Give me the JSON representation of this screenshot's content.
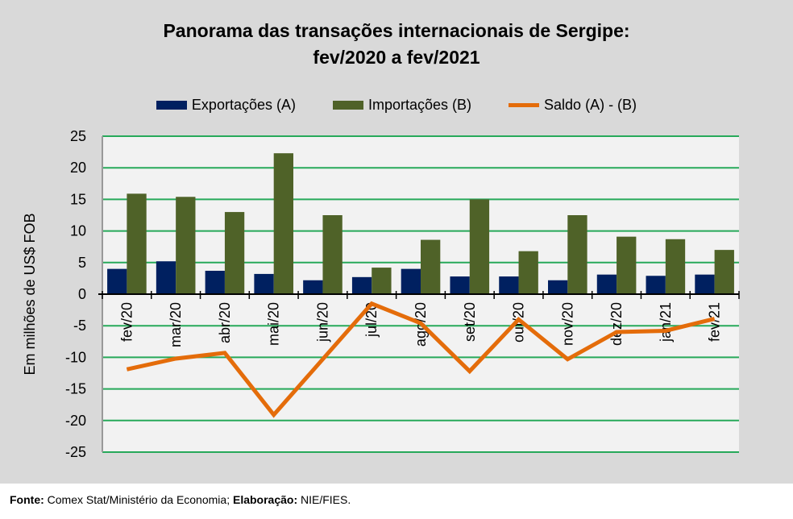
{
  "chart_data": {
    "type": "bar",
    "title_line1": "Panorama das transações internacionais de Sergipe:",
    "title_line2": "fev/2020 a fev/2021",
    "ylabel": "Em milhões de US$ FOB",
    "xlabel": "",
    "ylim": [
      -25,
      25
    ],
    "yticks": [
      25,
      20,
      15,
      10,
      5,
      0,
      -5,
      -10,
      -15,
      -20,
      -25
    ],
    "grid": true,
    "legend_position": "top",
    "categories": [
      "fev/20",
      "mar/20",
      "abr/20",
      "mai/20",
      "jun/20",
      "jul/20",
      "ago/20",
      "set/20",
      "out/20",
      "nov/20",
      "dez/20",
      "jan/21",
      "fev/21"
    ],
    "series": [
      {
        "name": "Exportações (A)",
        "type": "bar",
        "color": "#002060",
        "values": [
          4.0,
          5.2,
          3.7,
          3.2,
          2.2,
          2.7,
          4.0,
          2.8,
          2.8,
          2.2,
          3.1,
          2.9,
          3.1
        ]
      },
      {
        "name": "Importações (B)",
        "type": "bar",
        "color": "#4f6228",
        "values": [
          15.9,
          15.4,
          13.0,
          22.3,
          12.5,
          4.2,
          8.6,
          15.0,
          6.8,
          12.5,
          9.1,
          8.7,
          7.0
        ]
      },
      {
        "name": "Saldo (A) - (B)",
        "type": "line",
        "color": "#e46c0a",
        "values": [
          -11.9,
          -10.2,
          -9.3,
          -19.1,
          -10.3,
          -1.5,
          -4.6,
          -12.2,
          -4.0,
          -10.3,
          -6.0,
          -5.8,
          -3.9
        ]
      }
    ]
  },
  "footer": {
    "fonte_label": "Fonte:",
    "fonte_text": " Comex Stat/Ministério da Economia; ",
    "elab_label": "Elaboração:",
    "elab_text": " NIE/FIES."
  }
}
